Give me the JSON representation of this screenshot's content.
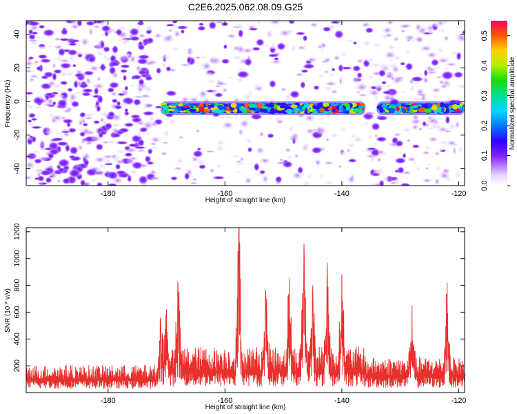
{
  "title": "C2E6.2025.062.08.09.G25",
  "chart_data": [
    {
      "type": "heatmap",
      "xlabel": "Height of straight line (km)",
      "ylabel": "Frequency (Hz)",
      "xlim": [
        -194,
        -119
      ],
      "ylim": [
        -50,
        48
      ],
      "xticks": [
        -180,
        -160,
        -140,
        -120
      ],
      "yticks": [
        -40,
        -20,
        0,
        20,
        40
      ],
      "colorbar": {
        "label": "Normalized spectral amplitude",
        "range": [
          0,
          0.55
        ],
        "ticks": [
          0.0,
          0.1,
          0.2,
          0.3,
          0.4,
          0.5
        ]
      },
      "signal_band": {
        "center_frequency_hz": -4,
        "x_segments": [
          [
            -171,
            -136
          ],
          [
            -134,
            -119
          ]
        ]
      }
    },
    {
      "type": "line",
      "xlabel": "Height of straight line (km)",
      "ylabel": "SNR (10 * v/v)",
      "xlim": [
        -194,
        -119
      ],
      "ylim": [
        0,
        1230
      ],
      "xticks": [
        -180,
        -160,
        -140,
        -120
      ],
      "yticks": [
        200,
        400,
        600,
        800,
        1000,
        1200
      ],
      "series": [
        {
          "name": "SNR",
          "color": "#e8302d",
          "baseline_level": 180,
          "peaks": [
            {
              "x": -171,
              "y": 560
            },
            {
              "x": -170,
              "y": 620
            },
            {
              "x": -168,
              "y": 790
            },
            {
              "x": -157.6,
              "y": 1230
            },
            {
              "x": -153,
              "y": 760
            },
            {
              "x": -149,
              "y": 850
            },
            {
              "x": -146.5,
              "y": 1110
            },
            {
              "x": -145,
              "y": 800
            },
            {
              "x": -142.5,
              "y": 970
            },
            {
              "x": -140,
              "y": 880
            },
            {
              "x": -128,
              "y": 650
            },
            {
              "x": -122,
              "y": 820
            }
          ]
        }
      ]
    }
  ]
}
